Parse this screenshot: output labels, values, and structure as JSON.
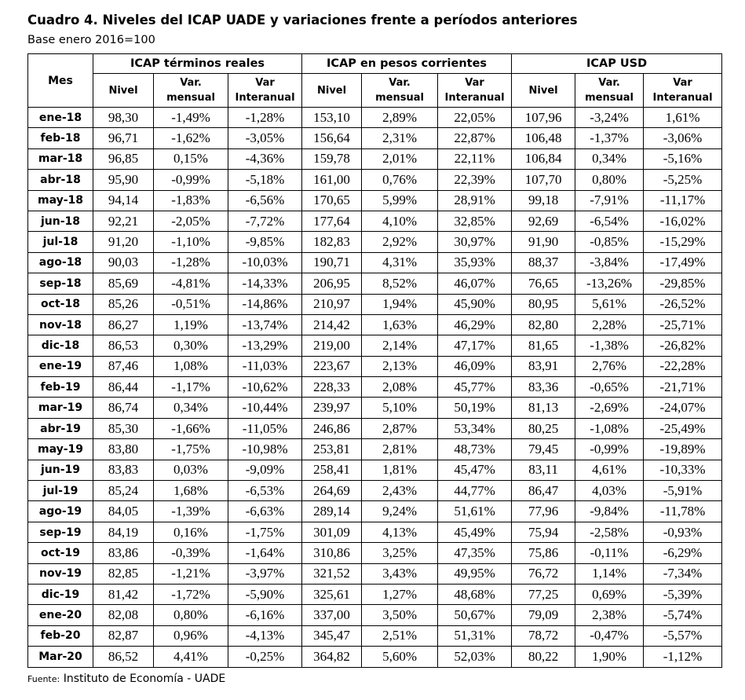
{
  "title": "Cuadro 4. Niveles del ICAP UADE y variaciones frente a períodos anteriores",
  "subtitle": "Base enero 2016=100",
  "headers": {
    "mes": "Mes",
    "group_reales": "ICAP términos reales",
    "group_corrientes": "ICAP en pesos corrientes",
    "group_usd": "ICAP USD",
    "nivel": "Nivel",
    "var_mensual_1": "Var.",
    "var_mensual_2": "mensual",
    "var_interanual_1": "Var",
    "var_interanual_2": "Interanual"
  },
  "rows": [
    [
      "ene-18",
      "98,30",
      "-1,49%",
      "-1,28%",
      "153,10",
      "2,89%",
      "22,05%",
      "107,96",
      "-3,24%",
      "1,61%"
    ],
    [
      "feb-18",
      "96,71",
      "-1,62%",
      "-3,05%",
      "156,64",
      "2,31%",
      "22,87%",
      "106,48",
      "-1,37%",
      "-3,06%"
    ],
    [
      "mar-18",
      "96,85",
      "0,15%",
      "-4,36%",
      "159,78",
      "2,01%",
      "22,11%",
      "106,84",
      "0,34%",
      "-5,16%"
    ],
    [
      "abr-18",
      "95,90",
      "-0,99%",
      "-5,18%",
      "161,00",
      "0,76%",
      "22,39%",
      "107,70",
      "0,80%",
      "-5,25%"
    ],
    [
      "may-18",
      "94,14",
      "-1,83%",
      "-6,56%",
      "170,65",
      "5,99%",
      "28,91%",
      "99,18",
      "-7,91%",
      "-11,17%"
    ],
    [
      "jun-18",
      "92,21",
      "-2,05%",
      "-7,72%",
      "177,64",
      "4,10%",
      "32,85%",
      "92,69",
      "-6,54%",
      "-16,02%"
    ],
    [
      "jul-18",
      "91,20",
      "-1,10%",
      "-9,85%",
      "182,83",
      "2,92%",
      "30,97%",
      "91,90",
      "-0,85%",
      "-15,29%"
    ],
    [
      "ago-18",
      "90,03",
      "-1,28%",
      "-10,03%",
      "190,71",
      "4,31%",
      "35,93%",
      "88,37",
      "-3,84%",
      "-17,49%"
    ],
    [
      "sep-18",
      "85,69",
      "-4,81%",
      "-14,33%",
      "206,95",
      "8,52%",
      "46,07%",
      "76,65",
      "-13,26%",
      "-29,85%"
    ],
    [
      "oct-18",
      "85,26",
      "-0,51%",
      "-14,86%",
      "210,97",
      "1,94%",
      "45,90%",
      "80,95",
      "5,61%",
      "-26,52%"
    ],
    [
      "nov-18",
      "86,27",
      "1,19%",
      "-13,74%",
      "214,42",
      "1,63%",
      "46,29%",
      "82,80",
      "2,28%",
      "-25,71%"
    ],
    [
      "dic-18",
      "86,53",
      "0,30%",
      "-13,29%",
      "219,00",
      "2,14%",
      "47,17%",
      "81,65",
      "-1,38%",
      "-26,82%"
    ],
    [
      "ene-19",
      "87,46",
      "1,08%",
      "-11,03%",
      "223,67",
      "2,13%",
      "46,09%",
      "83,91",
      "2,76%",
      "-22,28%"
    ],
    [
      "feb-19",
      "86,44",
      "-1,17%",
      "-10,62%",
      "228,33",
      "2,08%",
      "45,77%",
      "83,36",
      "-0,65%",
      "-21,71%"
    ],
    [
      "mar-19",
      "86,74",
      "0,34%",
      "-10,44%",
      "239,97",
      "5,10%",
      "50,19%",
      "81,13",
      "-2,69%",
      "-24,07%"
    ],
    [
      "abr-19",
      "85,30",
      "-1,66%",
      "-11,05%",
      "246,86",
      "2,87%",
      "53,34%",
      "80,25",
      "-1,08%",
      "-25,49%"
    ],
    [
      "may-19",
      "83,80",
      "-1,75%",
      "-10,98%",
      "253,81",
      "2,81%",
      "48,73%",
      "79,45",
      "-0,99%",
      "-19,89%"
    ],
    [
      "jun-19",
      "83,83",
      "0,03%",
      "-9,09%",
      "258,41",
      "1,81%",
      "45,47%",
      "83,11",
      "4,61%",
      "-10,33%"
    ],
    [
      "jul-19",
      "85,24",
      "1,68%",
      "-6,53%",
      "264,69",
      "2,43%",
      "44,77%",
      "86,47",
      "4,03%",
      "-5,91%"
    ],
    [
      "ago-19",
      "84,05",
      "-1,39%",
      "-6,63%",
      "289,14",
      "9,24%",
      "51,61%",
      "77,96",
      "-9,84%",
      "-11,78%"
    ],
    [
      "sep-19",
      "84,19",
      "0,16%",
      "-1,75%",
      "301,09",
      "4,13%",
      "45,49%",
      "75,94",
      "-2,58%",
      "-0,93%"
    ],
    [
      "oct-19",
      "83,86",
      "-0,39%",
      "-1,64%",
      "310,86",
      "3,25%",
      "47,35%",
      "75,86",
      "-0,11%",
      "-6,29%"
    ],
    [
      "nov-19",
      "82,85",
      "-1,21%",
      "-3,97%",
      "321,52",
      "3,43%",
      "49,95%",
      "76,72",
      "1,14%",
      "-7,34%"
    ],
    [
      "dic-19",
      "81,42",
      "-1,72%",
      "-5,90%",
      "325,61",
      "1,27%",
      "48,68%",
      "77,25",
      "0,69%",
      "-5,39%"
    ],
    [
      "ene-20",
      "82,08",
      "0,80%",
      "-6,16%",
      "337,00",
      "3,50%",
      "50,67%",
      "79,09",
      "2,38%",
      "-5,74%"
    ],
    [
      "feb-20",
      "82,87",
      "0,96%",
      "-4,13%",
      "345,47",
      "2,51%",
      "51,31%",
      "78,72",
      "-0,47%",
      "-5,57%"
    ],
    [
      "Mar-20",
      "86,52",
      "4,41%",
      "-0,25%",
      "364,82",
      "5,60%",
      "52,03%",
      "80,22",
      "1,90%",
      "-1,12%"
    ]
  ],
  "source": {
    "label": "Fuente:",
    "text": "Instituto de Economía - UADE"
  }
}
